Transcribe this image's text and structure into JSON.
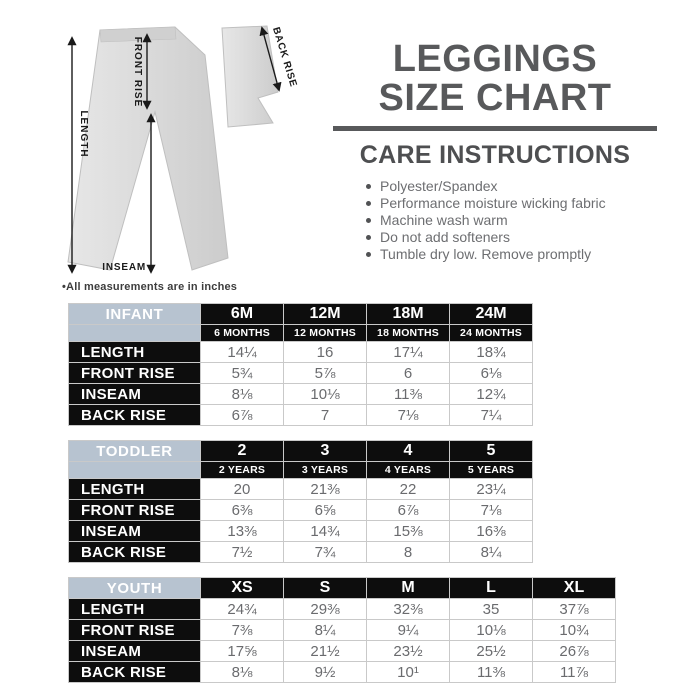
{
  "header": {
    "title_line1": "LEGGINGS",
    "title_line2": "SIZE CHART",
    "care_title": "CARE INSTRUCTIONS",
    "care_items": [
      "Polyester/Spandex",
      "Performance moisture wicking fabric",
      "Machine wash warm",
      "Do not add softeners",
      "Tumble dry low. Remove promptly"
    ]
  },
  "diagram": {
    "labels": {
      "length": "LENGTH",
      "front_rise": "FRONT RISE",
      "inseam": "INSEAM",
      "back_rise": "BACK RISE"
    },
    "note": "•All measurements are in inches"
  },
  "tables": [
    {
      "group": "INFANT",
      "columns": [
        "6M",
        "12M",
        "18M",
        "24M"
      ],
      "subcolumns": [
        "6 MONTHS",
        "12 MONTHS",
        "18 MONTHS",
        "24 MONTHS"
      ],
      "rows": [
        {
          "label": "LENGTH",
          "values": [
            "14¼",
            "16",
            "17¼",
            "18¾"
          ]
        },
        {
          "label": "FRONT RISE",
          "values": [
            "5¾",
            "5⅞",
            "6",
            "6⅛"
          ]
        },
        {
          "label": "INSEAM",
          "values": [
            "8⅛",
            "10⅛",
            "11⅜",
            "12¾"
          ]
        },
        {
          "label": "BACK RISE",
          "values": [
            "6⅞",
            "7",
            "7⅛",
            "7¼"
          ]
        }
      ]
    },
    {
      "group": "TODDLER",
      "columns": [
        "2",
        "3",
        "4",
        "5"
      ],
      "subcolumns": [
        "2 YEARS",
        "3 YEARS",
        "4 YEARS",
        "5 YEARS"
      ],
      "rows": [
        {
          "label": "LENGTH",
          "values": [
            "20",
            "21⅜",
            "22",
            "23¼"
          ]
        },
        {
          "label": "FRONT RISE",
          "values": [
            "6⅜",
            "6⅝",
            "6⅞",
            "7⅛"
          ]
        },
        {
          "label": "INSEAM",
          "values": [
            "13⅜",
            "14¾",
            "15⅜",
            "16⅜"
          ]
        },
        {
          "label": "BACK RISE",
          "values": [
            "7½",
            "7¾",
            "8",
            "8¼"
          ]
        }
      ]
    },
    {
      "group": "YOUTH",
      "columns": [
        "XS",
        "S",
        "M",
        "L",
        "XL"
      ],
      "subcolumns": null,
      "rows": [
        {
          "label": "LENGTH",
          "values": [
            "24¾",
            "29⅜",
            "32⅜",
            "35",
            "37⅞"
          ]
        },
        {
          "label": "FRONT RISE",
          "values": [
            "7⅜",
            "8¼",
            "9¼",
            "10⅛",
            "10¾"
          ]
        },
        {
          "label": "INSEAM",
          "values": [
            "17⅝",
            "21½",
            "23½",
            "25½",
            "26⅞"
          ]
        },
        {
          "label": "BACK RISE",
          "values": [
            "8⅛",
            "9½",
            "10¹",
            "11⅜",
            "11⅞"
          ]
        }
      ]
    }
  ],
  "colors": {
    "accent_gray": "#58595b",
    "table_header_blue": "#b7c3d0",
    "table_black": "#0d0d0d",
    "data_text": "#6a6b6e",
    "border_gray": "#c9c9c9"
  }
}
